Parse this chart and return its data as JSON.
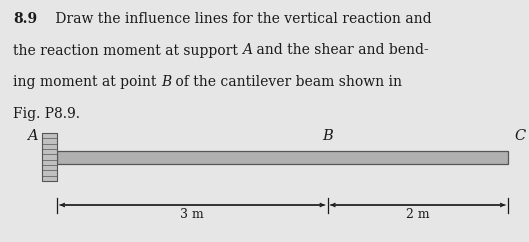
{
  "background_color": "#e6e6e6",
  "text_color": "#1a1a1a",
  "problem_number": "8.9",
  "font_size_body": 10.0,
  "font_size_labels": 10.5,
  "line1": " Draw the influence lines for the vertical reaction and",
  "line2_pre": "the reaction moment at support ",
  "line2_A": "A",
  "line2_post": " and the shear and bend-",
  "line3_pre": "ing moment at point ",
  "line3_B": "B",
  "line3_post": " of the cantilever beam shown in",
  "line4": "Fig. P8.9.",
  "label_A": "A",
  "label_B": "B",
  "label_C": "C",
  "label_3m": "3 m",
  "label_2m": "2 m",
  "beam_color": "#b0b0b0",
  "beam_edge_color": "#555555",
  "wall_color": "#c0c0c0",
  "wall_edge_color": "#555555"
}
